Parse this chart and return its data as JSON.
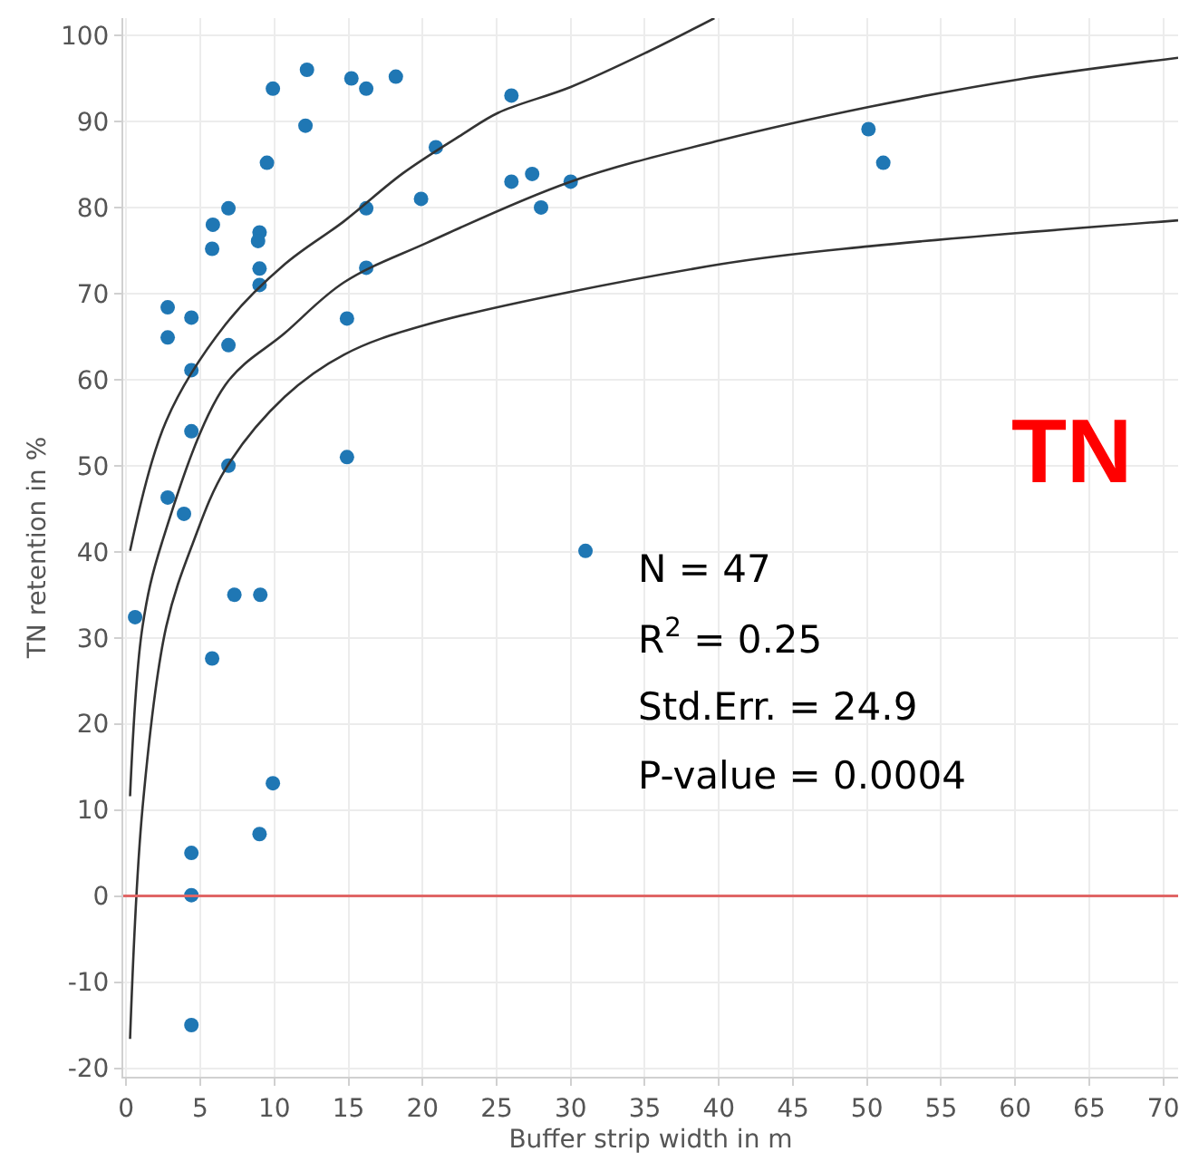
{
  "chart_data": {
    "type": "scatter",
    "title": "TN",
    "xlabel": "Buffer strip width in m",
    "ylabel": "TN retention in %",
    "annotations": [
      "N = 47",
      "R$^{2}$ = 0.25",
      "Std.Err. = 24.9",
      "P-value = 0.0004"
    ],
    "xlim": [
      -0.2,
      71
    ],
    "ylim": [
      -21,
      102
    ],
    "xticks": [
      0,
      5,
      10,
      15,
      20,
      25,
      30,
      35,
      40,
      45,
      50,
      55,
      60,
      65,
      70
    ],
    "yticks": [
      -20,
      -10,
      0,
      10,
      20,
      30,
      40,
      50,
      60,
      70,
      80,
      90,
      100
    ],
    "grid": true,
    "marker": "circle",
    "ref_lines": [
      {
        "axis": "y",
        "value": 0,
        "color": "#e06666"
      }
    ],
    "series": [
      {
        "color": "#1f77b4",
        "x": [
          2.8,
          2.8,
          4.4,
          4.4,
          4.4,
          2.8,
          3.9,
          5.85,
          5.8,
          6.9,
          6.9,
          6.9,
          9.0,
          8.9,
          9.0,
          9.0,
          9.5,
          9.9,
          12.2,
          12.1,
          15.2,
          16.2,
          18.2,
          20.9,
          19.9,
          16.2,
          16.2,
          14.9,
          14.9,
          0.6,
          7.3,
          9.05,
          5.8,
          9.9,
          9.0,
          4.4,
          4.4,
          4.4,
          26.0,
          26.0,
          27.4,
          28.0,
          30.0,
          50.1,
          51.1,
          31.0
        ],
        "values": [
          68.4,
          64.9,
          67.2,
          61.1,
          54.0,
          46.3,
          44.4,
          78.0,
          75.2,
          79.9,
          64.0,
          50.0,
          77.1,
          76.1,
          72.9,
          71.0,
          85.2,
          93.8,
          96.0,
          89.5,
          95.0,
          93.8,
          95.2,
          87.0,
          81.0,
          79.9,
          73.0,
          67.1,
          51.0,
          32.4,
          35.0,
          35.0,
          27.6,
          13.1,
          7.2,
          5.0,
          0.1,
          -15.0,
          93.0,
          83.0,
          83.9,
          80.0,
          83.0,
          89.1,
          85.2,
          40.1
        ]
      },
      {
        "type": "line",
        "color": "#333333",
        "marker": "none",
        "x": [
          0.26,
          2.7,
          6.7,
          10.7,
          14.7,
          18.7,
          22.7,
          25.1,
          30,
          35.1,
          39.7
        ],
        "values": [
          40.1,
          55.2,
          66.4,
          73.4,
          78.4,
          84.0,
          88.5,
          91.0,
          94.0,
          98.0,
          102.0
        ]
      },
      {
        "type": "line",
        "color": "#333333",
        "marker": "none",
        "x": [
          0.26,
          1.1,
          2.4,
          6.7,
          10.7,
          14.7,
          20.3,
          30,
          40.1,
          50.2,
          60.3,
          71
        ],
        "values": [
          11.6,
          31.3,
          41.0,
          59.4,
          65.4,
          71.3,
          75.9,
          83.0,
          87.8,
          91.7,
          94.9,
          97.4
        ]
      },
      {
        "type": "line",
        "color": "#333333",
        "marker": "none",
        "x": [
          0.26,
          1.1,
          2.7,
          4.5,
          6.7,
          10.7,
          14.7,
          20.3,
          40.1,
          50.2,
          71
        ],
        "values": [
          -16.6,
          10.2,
          31.3,
          41.0,
          49.6,
          58.0,
          62.9,
          66.4,
          73.4,
          75.5,
          78.5
        ]
      }
    ]
  }
}
